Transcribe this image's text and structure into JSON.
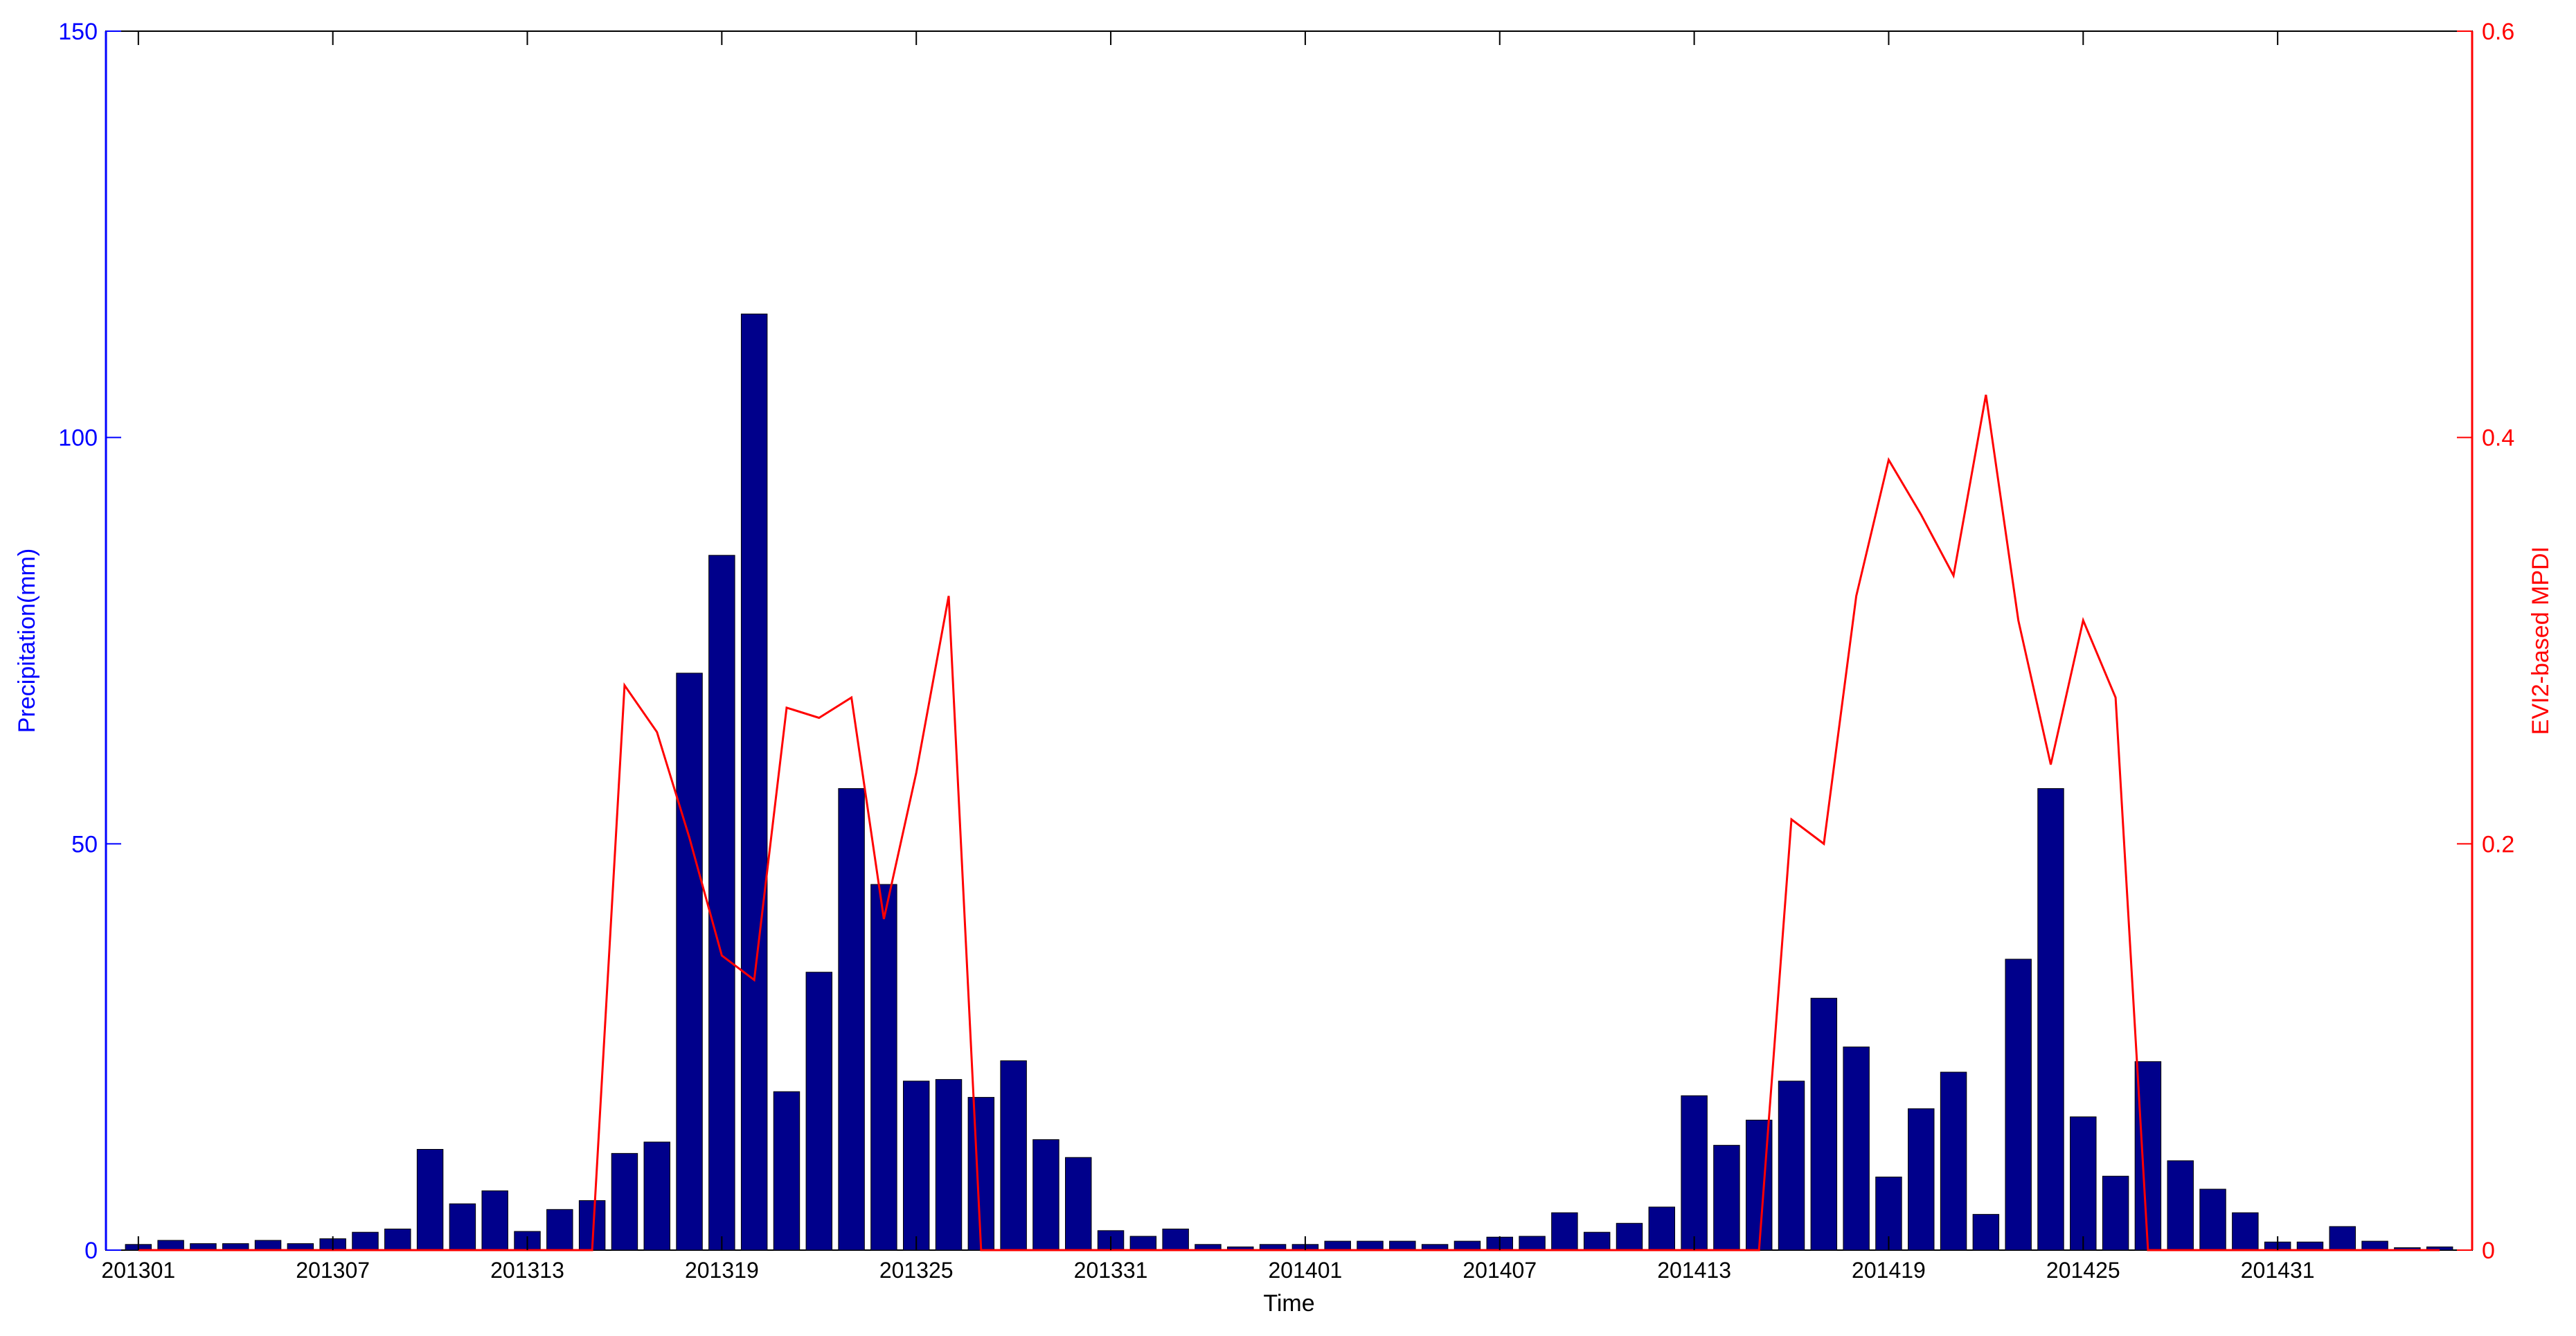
{
  "chart_data": {
    "type": "bar",
    "xlabel": "Time",
    "ylabel_left": "Precipitation(mm)",
    "ylabel_right": "EVI2-based MPDI",
    "ylim_left": [
      0,
      150
    ],
    "ylim_right": [
      0,
      0.6
    ],
    "left_ticks": [
      "0",
      "50",
      "100",
      "150"
    ],
    "right_ticks": [
      "0",
      "0.2",
      "0.4",
      "0.6"
    ],
    "x_tick_labels": [
      {
        "index": 0,
        "label": "201301"
      },
      {
        "index": 6,
        "label": "201307"
      },
      {
        "index": 12,
        "label": "201313"
      },
      {
        "index": 18,
        "label": "201319"
      },
      {
        "index": 24,
        "label": "201325"
      },
      {
        "index": 30,
        "label": "201331"
      },
      {
        "index": 36,
        "label": "201401"
      },
      {
        "index": 42,
        "label": "201407"
      },
      {
        "index": 48,
        "label": "201413"
      },
      {
        "index": 54,
        "label": "201419"
      },
      {
        "index": 60,
        "label": "201425"
      },
      {
        "index": 66,
        "label": "201431"
      }
    ],
    "n_slots": 72,
    "colors": {
      "left_axis": "#0000ff",
      "right_axis": "#ff0000",
      "bars": "#00008b",
      "line": "#ff0000",
      "frame": "#000000"
    },
    "series": [
      {
        "axis": "left",
        "type": "bar",
        "values": [
          0.7,
          1.2,
          0.8,
          0.8,
          1.2,
          0.8,
          1.4,
          2.2,
          2.6,
          12.4,
          5.7,
          7.3,
          2.3,
          5.0,
          6.1,
          11.9,
          13.3,
          71.0,
          85.5,
          115.2,
          19.5,
          34.2,
          56.8,
          45.0,
          20.8,
          21.0,
          18.8,
          23.3,
          13.6,
          11.4,
          2.4,
          1.7,
          2.6,
          0.7,
          0.4,
          0.7,
          0.7,
          1.1,
          1.1,
          1.1,
          0.7,
          1.1,
          1.6,
          1.7,
          4.6,
          2.2,
          3.3,
          5.3,
          19.0,
          12.9,
          16.0,
          20.8,
          31.0,
          25.0,
          9.0,
          17.4,
          21.9,
          4.4,
          35.8,
          56.8,
          16.4,
          9.1,
          23.2,
          11.0,
          7.5,
          4.6,
          1.0,
          1.0,
          2.9,
          1.1,
          0.3,
          0.4
        ]
      },
      {
        "axis": "right",
        "type": "line",
        "values": [
          0,
          0,
          0,
          0,
          0,
          0,
          0,
          0,
          0,
          0,
          0,
          0,
          0,
          0,
          0,
          0.278,
          0.255,
          0.203,
          0.145,
          0.133,
          0.267,
          0.262,
          0.272,
          0.163,
          0.235,
          0.322,
          0,
          0,
          0,
          0,
          0,
          0,
          0,
          0,
          0,
          0,
          0,
          0,
          0,
          0,
          0,
          0,
          0,
          0,
          0,
          0,
          0,
          0,
          0,
          0,
          0,
          0.212,
          0.2,
          0.322,
          0.389,
          0.362,
          0.332,
          0.421,
          0.31,
          0.239,
          0.31,
          0.272,
          0,
          0,
          0,
          0,
          0,
          0,
          0,
          0,
          0,
          0
        ]
      }
    ]
  }
}
